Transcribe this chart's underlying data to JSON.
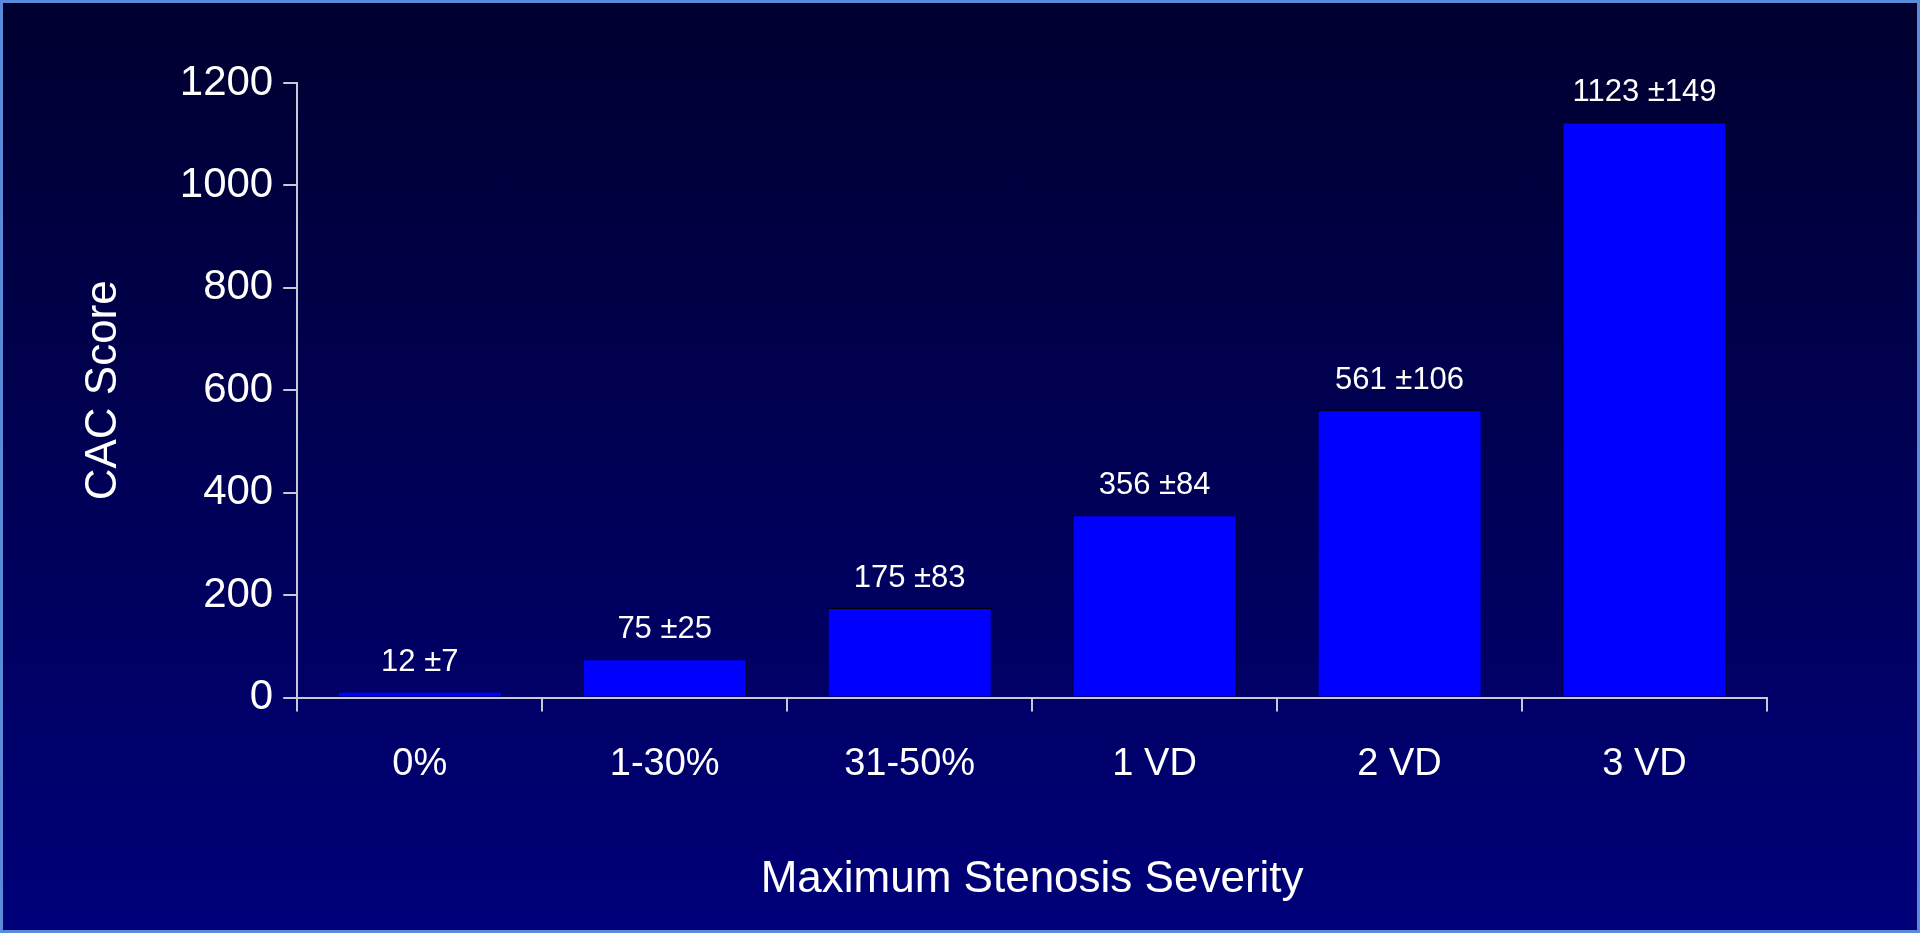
{
  "chart_data": {
    "type": "bar",
    "xlabel": "Maximum Stenosis Severity",
    "ylabel": "CAC Score",
    "categories": [
      "0%",
      "1-30%",
      "31-50%",
      "1 VD",
      "2 VD",
      "3 VD"
    ],
    "values": [
      12,
      75,
      175,
      356,
      561,
      1123
    ],
    "value_labels": [
      "12 ±7",
      "75 ±25",
      "175 ±83",
      "356 ±84",
      "561 ±106",
      "1123 ±149"
    ],
    "color": "#0000ff",
    "ylim": [
      0,
      1200
    ],
    "yticks": [
      0,
      200,
      400,
      600,
      800,
      1000,
      1200
    ],
    "grid": false,
    "legend": false
  }
}
